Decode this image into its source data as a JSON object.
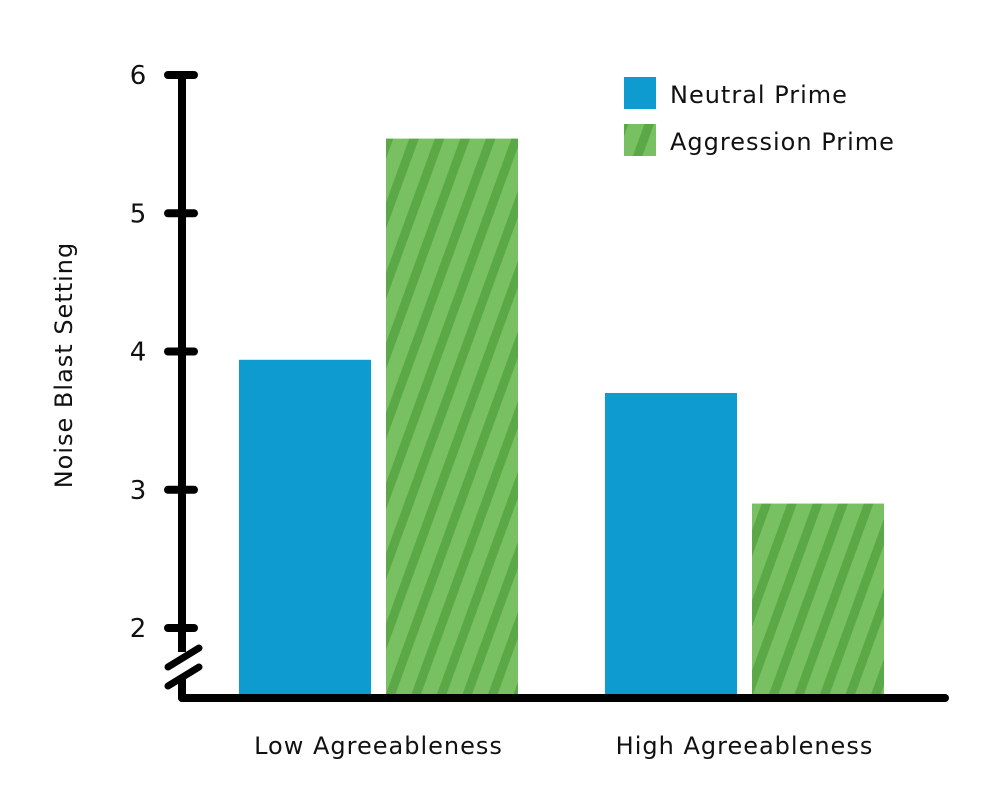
{
  "chart_data": {
    "type": "bar",
    "ylabel": "Noise Blast Setting",
    "xlabel": "",
    "categories": [
      "Low Agreeableness",
      "High Agreeableness"
    ],
    "series": [
      {
        "name": "Neutral Prime",
        "values": [
          3.94,
          3.7
        ],
        "color": "#0d9bd0",
        "pattern": "solid"
      },
      {
        "name": "Aggression Prime",
        "values": [
          5.54,
          2.9
        ],
        "color": "#79c062",
        "stripe_color": "#5aa846",
        "pattern": "diagonal-stripes"
      }
    ],
    "ylim": [
      1.55,
      6
    ],
    "yticks": [
      2,
      3,
      4,
      5,
      6
    ],
    "axis_break": true,
    "grid": false,
    "legend_position": "top-right"
  }
}
